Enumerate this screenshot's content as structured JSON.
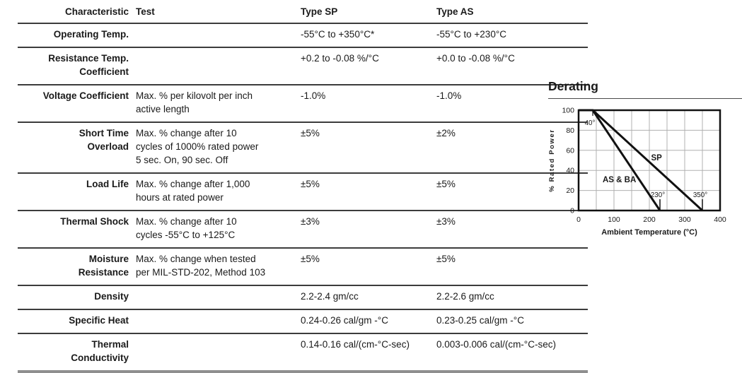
{
  "table": {
    "headers": {
      "characteristic": "Characteristic",
      "test": "Test",
      "type_sp": "Type SP",
      "type_as": "Type AS"
    },
    "rows": [
      {
        "characteristic": "Operating Temp.",
        "test": "",
        "type_sp": "-55°C to +350°C*",
        "type_as": "-55°C to +230°C"
      },
      {
        "characteristic": "Resistance Temp.\nCoefficient",
        "test": "",
        "type_sp": "+0.2 to -0.08 %/°C",
        "type_as": "+0.0 to -0.08 %/°C"
      },
      {
        "characteristic": "Voltage Coefficient",
        "test": "Max. % per kilovolt per inch\nactive length",
        "type_sp": "-1.0%",
        "type_as": "-1.0%"
      },
      {
        "characteristic": "Short Time\nOverload",
        "test": "Max. % change after 10\ncycles of 1000% rated power\n5 sec. On, 90 sec. Off",
        "type_sp": "±5%",
        "type_as": "±2%"
      },
      {
        "characteristic": "Load Life",
        "test": "Max. % change after 1,000\nhours at rated power",
        "type_sp": "±5%",
        "type_as": "±5%"
      },
      {
        "characteristic": "Thermal Shock",
        "test": "Max. % change after 10\ncycles -55°C to +125°C",
        "type_sp": "±3%",
        "type_as": "±3%"
      },
      {
        "characteristic": "Moisture\nResistance",
        "test": "Max. % change when tested\nper MIL-STD-202, Method 103",
        "type_sp": "±5%",
        "type_as": "±5%"
      },
      {
        "characteristic": "Density",
        "test": "",
        "type_sp": "2.2-2.4 gm/cc",
        "type_as": "2.2-2.6 gm/cc"
      },
      {
        "characteristic": "Specific Heat",
        "test": "",
        "type_sp": "0.24-0.26 cal/gm -°C",
        "type_as": "0.23-0.25 cal/gm -°C"
      },
      {
        "characteristic": "Thermal\nConductivity",
        "test": "",
        "type_sp": "0.14-0.16 cal/(cm-°C-sec)",
        "type_as": "0.003-0.006 cal/(cm-°C-sec)"
      }
    ]
  },
  "chart_data": {
    "type": "line",
    "title": "Derating",
    "xlabel": "Ambient Temperature (°C)",
    "ylabel": "% Rated Power",
    "xlim": [
      0,
      400
    ],
    "ylim": [
      0,
      100
    ],
    "x_ticks": [
      0,
      100,
      200,
      300,
      400
    ],
    "y_ticks": [
      0,
      20,
      40,
      60,
      80,
      100
    ],
    "grid_step_x": 50,
    "grid_step_y": 20,
    "grid": true,
    "legend_position": "inline-labels",
    "series": [
      {
        "name": "SP",
        "points": [
          [
            0,
            100
          ],
          [
            40,
            100
          ],
          [
            350,
            0
          ]
        ],
        "label_at": [
          205,
          50
        ]
      },
      {
        "name": "AS & BA",
        "points": [
          [
            0,
            100
          ],
          [
            40,
            100
          ],
          [
            230,
            0
          ]
        ],
        "label_at": [
          68,
          28
        ]
      }
    ],
    "annotations": [
      {
        "text": "40°",
        "type": "knee",
        "x": 40
      },
      {
        "text": "230°",
        "type": "x-intercept",
        "x": 230
      },
      {
        "text": "350°",
        "type": "x-intercept",
        "x": 350
      }
    ],
    "colors": {
      "line": "#111111",
      "grid": "#b0b0b0",
      "border": "#111111",
      "text": "#1a1a1a"
    }
  }
}
